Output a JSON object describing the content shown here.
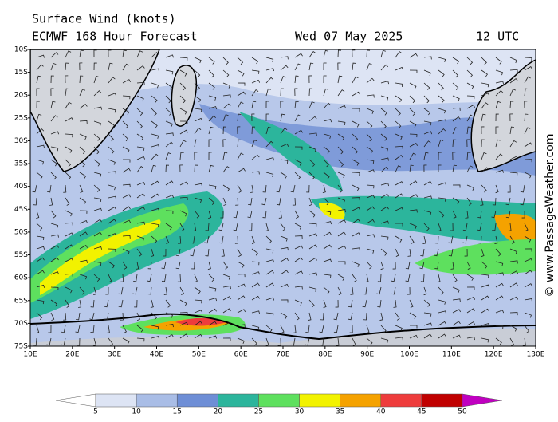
{
  "header": {
    "title": "Surface Wind (knots)",
    "model": "ECMWF 168 Hour Forecast",
    "date": "Wed 07 May 2025",
    "time": "12 UTC"
  },
  "lat_labels": [
    "10S",
    "15S",
    "20S",
    "25S",
    "30S",
    "35S",
    "40S",
    "45S",
    "50S",
    "55S",
    "60S",
    "65S",
    "70S",
    "75S"
  ],
  "lon_labels": [
    "10E",
    "20E",
    "30E",
    "40E",
    "50E",
    "60E",
    "70E",
    "80E",
    "90E",
    "100E",
    "110E",
    "120E",
    "130E"
  ],
  "colorbar": {
    "ticks": [
      5,
      10,
      15,
      20,
      25,
      30,
      35,
      40,
      45,
      50
    ],
    "colors": [
      "#ffffff",
      "#dde4f4",
      "#a9bde6",
      "#6e8ed6",
      "#2cb59c",
      "#5ee05e",
      "#f2f200",
      "#f5a200",
      "#ee3c3c",
      "#c00000",
      "#c000c0"
    ]
  },
  "copyright": "© www.PassageWeather.com"
}
